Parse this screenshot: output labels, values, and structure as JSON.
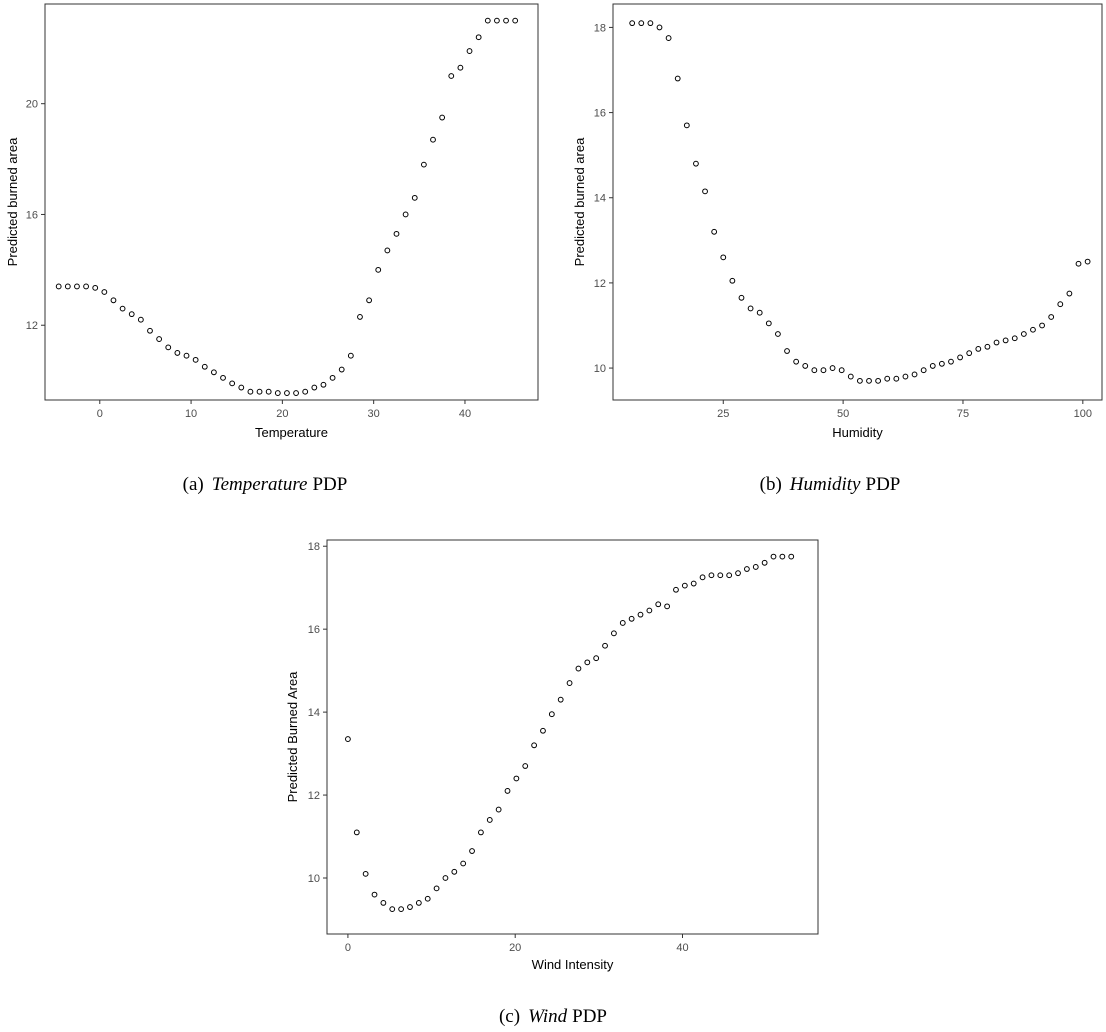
{
  "chart_data": [
    {
      "type": "scatter",
      "title": "",
      "xlabel": "Temperature",
      "ylabel": "Predicted burned area",
      "xlim": [
        -6,
        48
      ],
      "ylim": [
        9.3,
        23.6
      ],
      "xticks": [
        0,
        10,
        20,
        30,
        40
      ],
      "yticks": [
        12,
        16,
        20
      ],
      "grid": false,
      "caption": {
        "label": "(a)",
        "name": "Temperature",
        "suffix": "PDP"
      },
      "x": [
        -4.5,
        -3.5,
        -2.5,
        -1.5,
        -0.5,
        0.5,
        1.5,
        2.5,
        3.5,
        4.5,
        5.5,
        6.5,
        7.5,
        8.5,
        9.5,
        10.5,
        11.5,
        12.5,
        13.5,
        14.5,
        15.5,
        16.5,
        17.5,
        18.5,
        19.5,
        20.5,
        21.5,
        22.5,
        23.5,
        24.5,
        25.5,
        26.5,
        27.5,
        28.5,
        29.5,
        30.5,
        31.5,
        32.5,
        33.5,
        34.5,
        35.5,
        36.5,
        37.5,
        38.5,
        39.5,
        40.5,
        41.5,
        42.5,
        43.5,
        44.5,
        45.5
      ],
      "y": [
        13.4,
        13.4,
        13.4,
        13.4,
        13.35,
        13.2,
        12.9,
        12.6,
        12.4,
        12.2,
        11.8,
        11.5,
        11.2,
        11.0,
        10.9,
        10.75,
        10.5,
        10.3,
        10.1,
        9.9,
        9.75,
        9.6,
        9.6,
        9.6,
        9.55,
        9.55,
        9.55,
        9.6,
        9.75,
        9.85,
        10.1,
        10.4,
        10.9,
        12.3,
        12.9,
        14.0,
        14.7,
        15.3,
        16.0,
        16.6,
        17.8,
        18.7,
        19.5,
        21.0,
        21.3,
        21.9,
        22.4,
        23.0,
        23.0,
        23.0,
        23.0
      ]
    },
    {
      "type": "scatter",
      "title": "",
      "xlabel": "Humidity",
      "ylabel": "Predicted burned area",
      "xlim": [
        2,
        104
      ],
      "ylim": [
        9.25,
        18.55
      ],
      "xticks": [
        25,
        50,
        75,
        100
      ],
      "yticks": [
        10,
        12,
        14,
        16,
        18
      ],
      "grid": false,
      "caption": {
        "label": "(b)",
        "name": "Humidity",
        "suffix": "PDP"
      },
      "x": [
        6,
        7.9,
        9.8,
        11.7,
        13.6,
        15.5,
        17.4,
        19.3,
        21.2,
        23.1,
        25,
        26.9,
        28.8,
        30.7,
        32.6,
        34.5,
        36.4,
        38.3,
        40.2,
        42.1,
        44,
        45.9,
        47.8,
        49.7,
        51.6,
        53.5,
        55.4,
        57.3,
        59.2,
        61.1,
        63,
        64.9,
        66.8,
        68.7,
        70.6,
        72.5,
        74.4,
        76.3,
        78.2,
        80.1,
        82,
        83.9,
        85.8,
        87.7,
        89.6,
        91.5,
        93.4,
        95.3,
        97.2,
        99.1,
        101
      ],
      "y": [
        18.1,
        18.1,
        18.1,
        18.0,
        17.75,
        16.8,
        15.7,
        14.8,
        14.15,
        13.2,
        12.6,
        12.05,
        11.65,
        11.4,
        11.3,
        11.05,
        10.8,
        10.4,
        10.15,
        10.05,
        9.95,
        9.95,
        10.0,
        9.95,
        9.8,
        9.7,
        9.7,
        9.7,
        9.75,
        9.75,
        9.8,
        9.85,
        9.95,
        10.05,
        10.1,
        10.15,
        10.25,
        10.35,
        10.45,
        10.5,
        10.6,
        10.65,
        10.7,
        10.8,
        10.9,
        11.0,
        11.2,
        11.5,
        11.75,
        12.45,
        12.5
      ]
    },
    {
      "type": "scatter",
      "title": "",
      "xlabel": "Wind Intensity",
      "ylabel": "Predicted Burned Area",
      "xlim": [
        -2.5,
        56.2
      ],
      "ylim": [
        8.65,
        18.15
      ],
      "xticks": [
        0,
        20,
        40
      ],
      "yticks": [
        10,
        12,
        14,
        16,
        18
      ],
      "grid": false,
      "caption": {
        "label": "(c)",
        "name": "Wind",
        "suffix": "PDP"
      },
      "x": [
        0,
        1.06,
        2.12,
        3.18,
        4.24,
        5.3,
        6.36,
        7.42,
        8.48,
        9.54,
        10.6,
        11.66,
        12.72,
        13.78,
        14.84,
        15.9,
        16.96,
        18.02,
        19.08,
        20.14,
        21.2,
        22.26,
        23.32,
        24.38,
        25.44,
        26.5,
        27.56,
        28.62,
        29.68,
        30.74,
        31.8,
        32.86,
        33.92,
        34.98,
        36.04,
        37.1,
        38.16,
        39.22,
        40.28,
        41.34,
        42.4,
        43.46,
        44.52,
        45.58,
        46.64,
        47.7,
        48.76,
        49.82,
        50.88,
        51.94,
        53
      ],
      "y": [
        13.35,
        11.1,
        10.1,
        9.6,
        9.4,
        9.25,
        9.25,
        9.3,
        9.4,
        9.5,
        9.75,
        10.0,
        10.15,
        10.35,
        10.65,
        11.1,
        11.4,
        11.65,
        12.1,
        12.4,
        12.7,
        13.2,
        13.55,
        13.95,
        14.3,
        14.7,
        15.05,
        15.2,
        15.3,
        15.6,
        15.9,
        16.15,
        16.25,
        16.35,
        16.45,
        16.6,
        16.55,
        16.95,
        17.05,
        17.1,
        17.25,
        17.3,
        17.3,
        17.3,
        17.35,
        17.45,
        17.5,
        17.6,
        17.75,
        17.75,
        17.75
      ]
    }
  ]
}
